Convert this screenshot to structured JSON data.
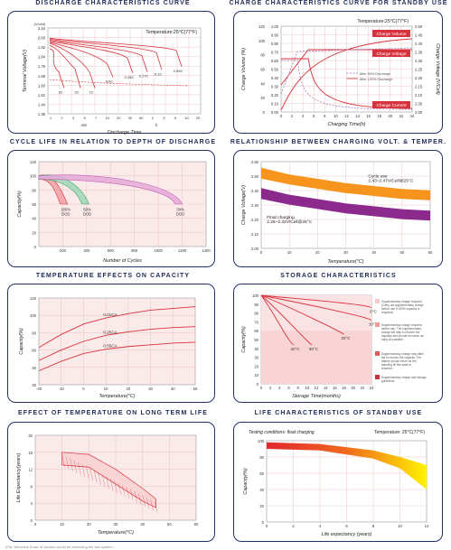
{
  "titles": {
    "discharge": "DISCHARGE CHARACTERISTICS CURVE",
    "charge": "CHARGE CHARACTERISTICS CURVE FOR STANDBY USE",
    "cycle": "CYCLE LIFE IN RELATION TO DEPTH OF DISCHARGE",
    "relationship": "RELATIONSHIP BETWEEN CHARGING VOLT. & TEMPER.",
    "tempcap": "TEMPERATURE EFFECTS ON CAPACITY",
    "storage": "STORAGE CHARACTERISTICS",
    "templife": "EFFECT OF TEMPERATURE ON LONG TERM LIFE",
    "standby": "LIFE CHARACTERISTICS OF STANDBY USE"
  },
  "footnote": "(Fit): Whichthe those of section would be observing the test system...",
  "chart_data": [
    {
      "id": "discharge",
      "type": "line",
      "title": "",
      "annotation": "Temperature:25°C(77°F)",
      "xlabel": "Discharge Time",
      "ylabel": "Terminal Voltage(V)",
      "y_unit": "(V/cell)",
      "xunits": [
        "min",
        "h"
      ],
      "xticks": [
        "1",
        "2",
        "3",
        "5",
        "7",
        "10",
        "20",
        "30",
        "60",
        "2",
        "3",
        "5",
        "10",
        "20"
      ],
      "ylim": [
        1.36,
        2.16
      ],
      "yticks": [
        "2.16",
        "2.00",
        "1.92",
        "1.84",
        "1.76",
        "1.68",
        "1.60",
        "1.52",
        "1.44",
        "1.36"
      ],
      "series": [
        {
          "name": "3C",
          "values": [
            1.95,
            1.9,
            1.85,
            1.75,
            1.6
          ]
        },
        {
          "name": "2C",
          "values": [
            1.98,
            1.93,
            1.88,
            1.78,
            1.6
          ]
        },
        {
          "name": "1C",
          "values": [
            2.0,
            1.96,
            1.9,
            1.75,
            1.6
          ]
        },
        {
          "name": "0.6C",
          "values": [
            2.01,
            1.97,
            1.93,
            1.82,
            1.7
          ]
        },
        {
          "name": "0.25C",
          "values": [
            2.02,
            1.99,
            1.96,
            1.88,
            1.74
          ]
        },
        {
          "name": "0.17C",
          "values": [
            2.03,
            2.0,
            1.97,
            1.9,
            1.75
          ]
        },
        {
          "name": "0.1C",
          "values": [
            2.04,
            2.02,
            1.99,
            1.93,
            1.77
          ]
        },
        {
          "name": "0.05C",
          "values": [
            2.05,
            2.03,
            2.0,
            1.95,
            1.8
          ]
        }
      ]
    },
    {
      "id": "charge",
      "type": "line",
      "title": "",
      "annotation": "Temperature:25°C(77°F)",
      "xlabel": "Charging Time(h)",
      "ylabel_left": "Charge Volume (%)",
      "ylabel_right": "Charge Voltage (V/Cell)",
      "xticks": [
        "0",
        "2",
        "4",
        "6",
        "8",
        "10",
        "12",
        "14",
        "16",
        "18",
        "20",
        "22",
        "24"
      ],
      "yticks_left": [
        "1.00",
        "0.90",
        "0.80",
        "0.70",
        "0.60",
        "0.50",
        "0.40",
        "0.30",
        "0.20",
        "0.10",
        "0.00"
      ],
      "yticks_percent": [
        "120",
        "100",
        "80",
        "60",
        "40",
        "20",
        "0"
      ],
      "yticks_right": [
        "2.50",
        "2.45",
        "2.40",
        "2.35",
        "2.30",
        "2.25",
        "2.20",
        "2.15",
        "2.10",
        "2.05",
        "2.00"
      ],
      "labels": {
        "charge_volume": "Charge Volume",
        "charge_voltage": "Charge Voltage",
        "charge_current": "Charge Current",
        "after50": "After 50% Discharge",
        "after100": "After 100% Discharge"
      }
    },
    {
      "id": "cycle",
      "type": "area",
      "title": "",
      "xlabel": "Number of Cycles",
      "ylabel": "Capacity(%)",
      "xlim": [
        0,
        1400
      ],
      "ylim": [
        0,
        120
      ],
      "xticks": [
        "200",
        "400",
        "600",
        "800",
        "1000",
        "1200",
        "1400"
      ],
      "yticks": [
        "120",
        "100",
        "80",
        "60",
        "40",
        "20",
        "0"
      ],
      "series": [
        {
          "name": "100% DOD",
          "end_cycles": 240
        },
        {
          "name": "50% DOD",
          "end_cycles": 420
        },
        {
          "name": "30% DOD",
          "end_cycles": 1200
        }
      ],
      "labels": [
        "100% DOD",
        "50% DOD",
        "30% DOD"
      ]
    },
    {
      "id": "relationship",
      "type": "area",
      "title": "",
      "xlabel": "Temperature(°C)",
      "ylabel": "Charge Voltage(V)",
      "xlim": [
        0,
        60
      ],
      "ylim": [
        2.0,
        2.6
      ],
      "xticks": [
        "0",
        "10",
        "20",
        "30",
        "40",
        "50",
        "60"
      ],
      "yticks": [
        "2.60",
        "2.50",
        "2.40",
        "2.30",
        "2.20",
        "2.10",
        "2.00"
      ],
      "series": [
        {
          "name": "Cycle use",
          "label": "Cycle use\n2.43~2.47V/Cell@25°C",
          "mid": [
            2.52,
            2.48,
            2.45,
            2.42,
            2.4,
            2.38,
            2.37
          ]
        },
        {
          "name": "Float charging",
          "label": "Float charging\n2.28~2.32V/Cell@25°C",
          "mid": [
            2.38,
            2.34,
            2.31,
            2.28,
            2.26,
            2.24,
            2.23
          ]
        }
      ],
      "labels": {
        "cycle": "Cycle use",
        "cycle_v": "2.43~2.47V/Cell@25°C",
        "float": "Float charging",
        "float_v": "2.28~2.32V/Cell@25°C"
      }
    },
    {
      "id": "tempcap",
      "type": "line",
      "title": "",
      "xlabel": "Temperature(°C)",
      "ylabel": "Capacity(%)",
      "xlim": [
        -20,
        50
      ],
      "ylim": [
        20,
        120
      ],
      "xticks": [
        "-20",
        "-10",
        "0",
        "10",
        "20",
        "30",
        "40",
        "50"
      ],
      "yticks": [
        "120",
        "100",
        "80",
        "60",
        "40",
        "20"
      ],
      "x": [
        -20,
        -10,
        0,
        10,
        20,
        30,
        40,
        50
      ],
      "series": [
        {
          "name": "0.01CA",
          "values": [
            63,
            78,
            90,
            97,
            102,
            106,
            108,
            110
          ]
        },
        {
          "name": "0.25CA",
          "values": [
            48,
            60,
            70,
            77,
            81,
            84,
            86,
            87
          ]
        },
        {
          "name": "0.55CA",
          "values": [
            36,
            47,
            56,
            61,
            64,
            66,
            68,
            69
          ]
        }
      ]
    },
    {
      "id": "storage",
      "type": "line",
      "title": "",
      "xlabel": "Storage Time(months)",
      "ylabel": "Capacity(%)",
      "xlim": [
        0,
        24
      ],
      "ylim": [
        0,
        100
      ],
      "xticks": [
        "0",
        "2",
        "4",
        "6",
        "8",
        "10",
        "12",
        "14",
        "16",
        "18",
        "20",
        "22",
        "24"
      ],
      "yticks": [
        "100",
        "90",
        "80",
        "70",
        "60",
        "50",
        "40",
        "30",
        "20",
        "10",
        "0"
      ],
      "series": [
        {
          "name": "0°C",
          "end": [
            24,
            86
          ]
        },
        {
          "name": "10°C",
          "end": [
            24,
            72
          ]
        },
        {
          "name": "20°C",
          "end": [
            18,
            56
          ]
        },
        {
          "name": "30°C",
          "end": [
            11,
            44
          ]
        },
        {
          "name": "40°C",
          "end": [
            7,
            44
          ]
        }
      ],
      "legend": [
        "Supplementary charge required (Carry out supplementary charge before use if 100% capacity is required)",
        "Supplementary charge required before use. The supplementary charge will help to recover the capacity and should be made, as early as possible.",
        "Supplementary charge may often fail to recover the capacity. The battery should never be left standing till this state is reached.",
        "Supplementary charge and storage guidelines"
      ],
      "legend_colors": [
        "#f6c9c9",
        "#f09a9a",
        "#e05a5a",
        "#c8303c"
      ]
    },
    {
      "id": "templife",
      "type": "area",
      "title": "",
      "xlabel": "Temperature(°C)",
      "ylabel": "Life Expectancy(years)",
      "xlim": [
        0,
        60
      ],
      "ylim": [
        0,
        20
      ],
      "xticks": [
        "0",
        "10",
        "20",
        "30",
        "40",
        "50",
        "60"
      ],
      "yticks": [
        "20",
        "16",
        "12",
        "8",
        "4",
        "0"
      ],
      "band_upper": [
        [
          10,
          16
        ],
        [
          20,
          15.5
        ],
        [
          30,
          12
        ],
        [
          40,
          7.5
        ],
        [
          45,
          5
        ]
      ],
      "band_lower": [
        [
          10,
          13
        ],
        [
          20,
          12.5
        ],
        [
          30,
          8.5
        ],
        [
          40,
          4.5
        ],
        [
          45,
          3
        ]
      ]
    },
    {
      "id": "standby",
      "type": "area",
      "title": "",
      "annotation_left": "Testing conditions: float charging",
      "annotation_right": "Temperature: 25°C(77°F)",
      "xlabel": "Life expectancy (years)",
      "ylabel": "Capacity(%)",
      "xlim": [
        0,
        12
      ],
      "ylim": [
        0,
        100
      ],
      "xticks": [
        "0",
        "2",
        "4",
        "6",
        "8",
        "10",
        "12"
      ],
      "yticks": [
        "100",
        "80",
        "60",
        "40",
        "20",
        "0"
      ],
      "band_upper": [
        [
          0,
          98
        ],
        [
          4,
          96
        ],
        [
          8,
          88
        ],
        [
          10,
          80
        ],
        [
          12,
          70
        ]
      ],
      "band_lower": [
        [
          0,
          90
        ],
        [
          4,
          88
        ],
        [
          8,
          78
        ],
        [
          10,
          66
        ],
        [
          12,
          40
        ]
      ]
    }
  ]
}
